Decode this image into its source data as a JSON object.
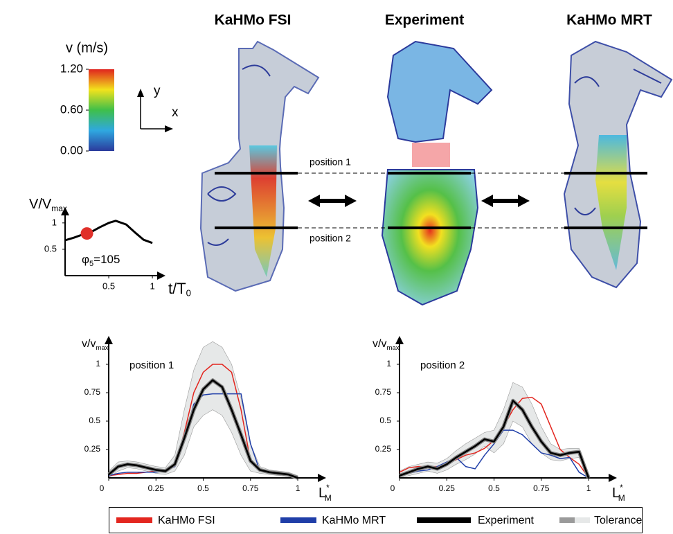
{
  "columns": [
    "KaHMo FSI",
    "Experiment",
    "KaHMo MRT"
  ],
  "colorbar": {
    "title": "v (m/s)",
    "lim": [
      0,
      1.2
    ],
    "ticks": [
      {
        "value": 0,
        "label": "0.00"
      },
      {
        "value": 0.6,
        "label": "0.60"
      },
      {
        "value": 1.2,
        "label": "1.20"
      }
    ]
  },
  "axis_symbols": {
    "y": "y",
    "x": "x"
  },
  "position_labels": [
    "position 1",
    "position 2"
  ],
  "chart_data": [
    {
      "type": "line",
      "ylabel": {
        "text": "V/V",
        "sub": "max"
      },
      "xlabel": {
        "text": "t/T",
        "sub": "0"
      },
      "annotation": {
        "symbol": "φ",
        "sub": "5",
        "text": "=105"
      },
      "x": [
        0,
        0.1,
        0.2,
        0.3,
        0.4,
        0.5,
        0.58,
        0.7,
        0.8,
        0.9,
        1
      ],
      "series": [
        {
          "color": "#000000",
          "values": [
            0.67,
            0.72,
            0.78,
            0.83,
            0.92,
            1.0,
            1.04,
            0.97,
            0.82,
            0.68,
            0.62
          ]
        }
      ],
      "marker": {
        "x": 0.25,
        "y": 0.8,
        "color": "#e0302a"
      },
      "xlim": [
        0,
        1.15
      ],
      "ylim": [
        0,
        1.3
      ],
      "xticks": [
        0.5,
        1
      ],
      "yticks": [
        0.5,
        1
      ]
    },
    {
      "type": "line",
      "annotation": "position 1",
      "ylabel": {
        "text": "v/v",
        "sub": "max"
      },
      "xlabel": {
        "text": "L",
        "sup": "*",
        "sub": "M"
      },
      "x": [
        0,
        0.05,
        0.1,
        0.15,
        0.2,
        0.25,
        0.3,
        0.35,
        0.4,
        0.45,
        0.5,
        0.55,
        0.6,
        0.65,
        0.7,
        0.75,
        0.8,
        0.85,
        0.9,
        0.95,
        1
      ],
      "band": {
        "name": "Tolerance",
        "color": "#e6e8e8",
        "edge_color": "#9a9a9a",
        "upper": [
          0.06,
          0.14,
          0.15,
          0.14,
          0.12,
          0.1,
          0.09,
          0.2,
          0.6,
          0.95,
          1.15,
          1.2,
          1.15,
          1.0,
          0.7,
          0.3,
          0.1,
          0.07,
          0.06,
          0.05,
          0.02
        ],
        "lower": [
          0,
          0.06,
          0.09,
          0.08,
          0.06,
          0.04,
          0.03,
          0.06,
          0.2,
          0.45,
          0.55,
          0.6,
          0.55,
          0.4,
          0.2,
          0.06,
          0.04,
          0.03,
          0.02,
          0.01,
          0
        ]
      },
      "series": [
        {
          "name": "KaHMo FSI",
          "color": "#e3261f",
          "values": [
            0.02,
            0.03,
            0.04,
            0.04,
            0.05,
            0.06,
            0.07,
            0.1,
            0.4,
            0.75,
            0.93,
            1.0,
            1.0,
            0.93,
            0.6,
            0.15,
            0.06,
            0.04,
            0.03,
            0.02,
            0
          ]
        },
        {
          "name": "KaHMo MRT",
          "color": "#1f3ea8",
          "values": [
            0.02,
            0.04,
            0.05,
            0.05,
            0.05,
            0.05,
            0.06,
            0.1,
            0.35,
            0.65,
            0.73,
            0.74,
            0.74,
            0.74,
            0.74,
            0.3,
            0.06,
            0.04,
            0.03,
            0.02,
            0
          ]
        },
        {
          "name": "Experiment",
          "color": "#000000",
          "values": [
            0.03,
            0.1,
            0.12,
            0.11,
            0.09,
            0.07,
            0.06,
            0.12,
            0.35,
            0.6,
            0.78,
            0.86,
            0.8,
            0.6,
            0.38,
            0.15,
            0.07,
            0.05,
            0.04,
            0.03,
            0
          ]
        }
      ],
      "xlim": [
        0,
        1.15
      ],
      "ylim": [
        0,
        1.25
      ],
      "xticks": [
        0,
        0.25,
        0.5,
        0.75,
        1
      ],
      "yticks": [
        0.25,
        0.5,
        0.75,
        1
      ]
    },
    {
      "type": "line",
      "annotation": "position 2",
      "ylabel": {
        "text": "v/v",
        "sub": "max"
      },
      "xlabel": {
        "text": "L",
        "sup": "*",
        "sub": "M"
      },
      "x": [
        0,
        0.05,
        0.1,
        0.15,
        0.2,
        0.25,
        0.3,
        0.35,
        0.4,
        0.45,
        0.5,
        0.55,
        0.6,
        0.65,
        0.7,
        0.75,
        0.8,
        0.85,
        0.9,
        0.95,
        1
      ],
      "band": {
        "name": "Tolerance",
        "color": "#e6e8e8",
        "edge_color": "#9a9a9a",
        "upper": [
          0.06,
          0.1,
          0.12,
          0.14,
          0.13,
          0.17,
          0.24,
          0.3,
          0.35,
          0.4,
          0.42,
          0.6,
          0.84,
          0.8,
          0.65,
          0.45,
          0.3,
          0.25,
          0.26,
          0.26,
          0.02
        ],
        "lower": [
          0,
          0.02,
          0.04,
          0.06,
          0.04,
          0.07,
          0.12,
          0.16,
          0.21,
          0.28,
          0.22,
          0.3,
          0.5,
          0.45,
          0.3,
          0.22,
          0.16,
          0.15,
          0.17,
          0.18,
          0
        ]
      },
      "series": [
        {
          "name": "KaHMo FSI",
          "color": "#e3261f",
          "values": [
            0.05,
            0.09,
            0.1,
            0.1,
            0.1,
            0.12,
            0.16,
            0.2,
            0.22,
            0.26,
            0.33,
            0.45,
            0.6,
            0.7,
            0.71,
            0.65,
            0.45,
            0.25,
            0.18,
            0.12,
            0
          ]
        },
        {
          "name": "KaHMo MRT",
          "color": "#1f3ea8",
          "values": [
            0.02,
            0.04,
            0.06,
            0.07,
            0.1,
            0.14,
            0.18,
            0.1,
            0.08,
            0.2,
            0.3,
            0.42,
            0.42,
            0.38,
            0.3,
            0.22,
            0.2,
            0.17,
            0.18,
            0.05,
            0
          ]
        },
        {
          "name": "Experiment",
          "color": "#000000",
          "values": [
            0.02,
            0.05,
            0.08,
            0.1,
            0.08,
            0.12,
            0.18,
            0.23,
            0.28,
            0.34,
            0.32,
            0.45,
            0.68,
            0.6,
            0.45,
            0.32,
            0.22,
            0.2,
            0.22,
            0.23,
            0
          ]
        }
      ],
      "xlim": [
        0,
        1.15
      ],
      "ylim": [
        0,
        1.25
      ],
      "xticks": [
        0,
        0.25,
        0.5,
        0.75,
        1
      ],
      "yticks": [
        0.25,
        0.5,
        0.75,
        1
      ]
    }
  ]
}
